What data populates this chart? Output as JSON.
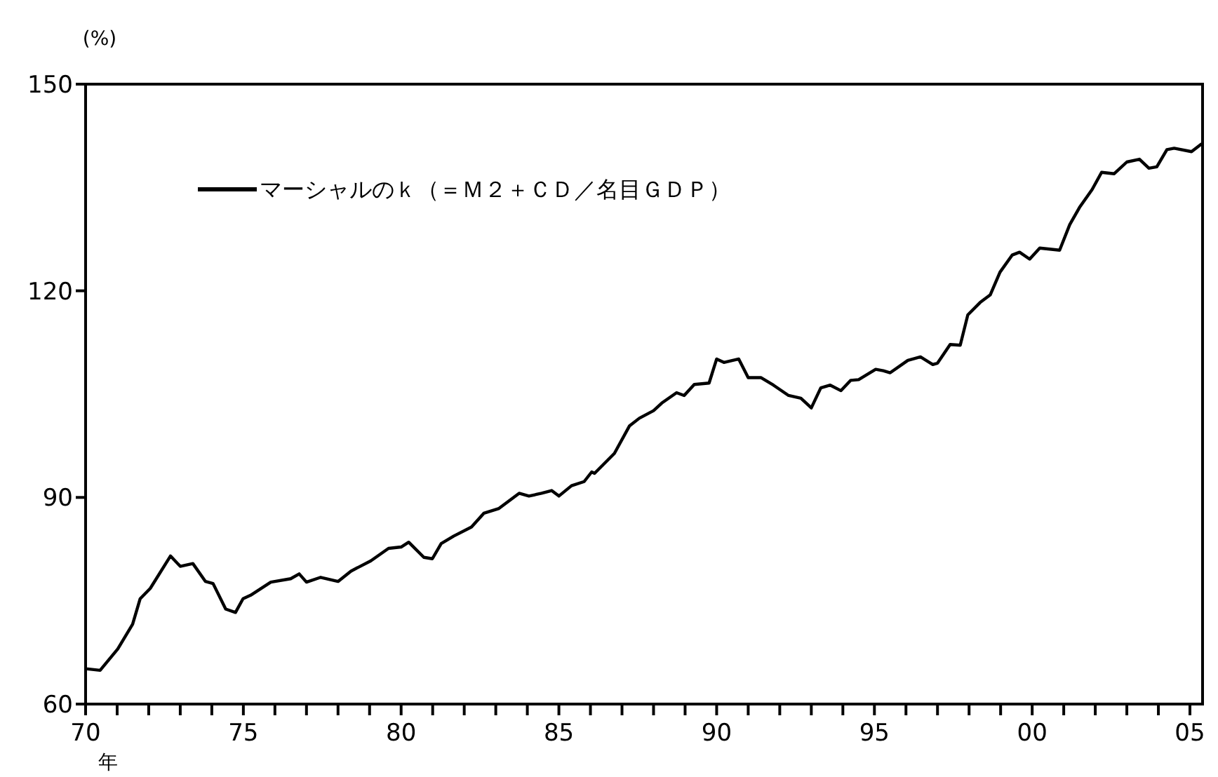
{
  "chart_data": {
    "type": "line",
    "ylabel": "(%)",
    "xlabel": "年",
    "xlim": [
      1970,
      2005.4
    ],
    "ylim": [
      60,
      150
    ],
    "yticks": [
      60,
      90,
      120,
      150
    ],
    "xticks": [
      {
        "value": 1970,
        "label": "70"
      },
      {
        "value": 1971,
        "label": null
      },
      {
        "value": 1972,
        "label": null
      },
      {
        "value": 1973,
        "label": null
      },
      {
        "value": 1974,
        "label": null
      },
      {
        "value": 1975,
        "label": "75"
      },
      {
        "value": 1976,
        "label": null
      },
      {
        "value": 1977,
        "label": null
      },
      {
        "value": 1978,
        "label": null
      },
      {
        "value": 1979,
        "label": null
      },
      {
        "value": 1980,
        "label": "80"
      },
      {
        "value": 1981,
        "label": null
      },
      {
        "value": 1982,
        "label": null
      },
      {
        "value": 1983,
        "label": null
      },
      {
        "value": 1984,
        "label": null
      },
      {
        "value": 1985,
        "label": "85"
      },
      {
        "value": 1986,
        "label": null
      },
      {
        "value": 1987,
        "label": null
      },
      {
        "value": 1988,
        "label": null
      },
      {
        "value": 1989,
        "label": null
      },
      {
        "value": 1990,
        "label": "90"
      },
      {
        "value": 1991,
        "label": null
      },
      {
        "value": 1992,
        "label": null
      },
      {
        "value": 1993,
        "label": null
      },
      {
        "value": 1994,
        "label": null
      },
      {
        "value": 1995,
        "label": "95"
      },
      {
        "value": 1996,
        "label": null
      },
      {
        "value": 1997,
        "label": null
      },
      {
        "value": 1998,
        "label": null
      },
      {
        "value": 1999,
        "label": null
      },
      {
        "value": 2000,
        "label": "00"
      },
      {
        "value": 2001,
        "label": null
      },
      {
        "value": 2002,
        "label": null
      },
      {
        "value": 2003,
        "label": null
      },
      {
        "value": 2004,
        "label": null
      },
      {
        "value": 2005,
        "label": "05"
      }
    ],
    "grid": false,
    "legend": "top left",
    "marker": "none",
    "line_style": "solid",
    "series": [
      {
        "name": "マーシャルのｋ（＝Ｍ２＋ＣＤ／名目ＧＤＰ）",
        "color": "#000000",
        "x": [
          1970.06,
          1970.46,
          1971.02,
          1971.49,
          1971.73,
          1972.05,
          1972.69,
          1973.0,
          1973.4,
          1973.8,
          1974.04,
          1974.44,
          1974.75,
          1974.99,
          1975.23,
          1975.87,
          1976.5,
          1976.77,
          1977.0,
          1977.45,
          1978.0,
          1978.41,
          1979.04,
          1979.6,
          1980.0,
          1980.24,
          1980.72,
          1980.99,
          1981.27,
          1981.67,
          1982.23,
          1982.62,
          1983.1,
          1983.74,
          1984.05,
          1984.45,
          1984.77,
          1985.0,
          1985.4,
          1985.8,
          1986.04,
          1986.13,
          1986.76,
          1987.24,
          1987.55,
          1988.0,
          1988.26,
          1988.73,
          1988.97,
          1989.29,
          1989.76,
          1990.0,
          1990.23,
          1990.7,
          1991.0,
          1991.4,
          1991.8,
          1992.28,
          1992.67,
          1993.0,
          1993.3,
          1993.6,
          1993.94,
          1994.25,
          1994.5,
          1995.04,
          1995.28,
          1995.5,
          1996.06,
          1996.46,
          1996.85,
          1997.0,
          1997.4,
          1997.72,
          1997.96,
          1998.35,
          1998.67,
          1998.98,
          1999.37,
          1999.6,
          1999.92,
          2000.24,
          2000.87,
          2001.19,
          2001.5,
          2001.9,
          2002.2,
          2002.6,
          2003.0,
          2003.4,
          2003.7,
          2003.95,
          2004.27,
          2004.5,
          2005.05,
          2005.36
        ],
        "values": [
          65.1,
          64.9,
          68.0,
          71.6,
          75.3,
          76.8,
          81.5,
          80.0,
          80.4,
          77.8,
          77.5,
          73.8,
          73.3,
          75.3,
          75.8,
          77.7,
          78.2,
          78.9,
          77.7,
          78.4,
          77.8,
          79.3,
          80.8,
          82.6,
          82.8,
          83.5,
          81.3,
          81.1,
          83.3,
          84.4,
          85.7,
          87.7,
          88.4,
          90.6,
          90.2,
          90.6,
          91.0,
          90.2,
          91.7,
          92.3,
          93.7,
          93.5,
          96.4,
          100.4,
          101.5,
          102.6,
          103.7,
          105.2,
          104.8,
          106.4,
          106.6,
          110.1,
          109.6,
          110.1,
          107.4,
          107.4,
          106.3,
          104.8,
          104.4,
          103.0,
          105.9,
          106.3,
          105.5,
          107.0,
          107.1,
          108.6,
          108.4,
          108.1,
          109.9,
          110.4,
          109.3,
          109.5,
          112.2,
          112.1,
          116.5,
          118.3,
          119.4,
          122.7,
          125.2,
          125.6,
          124.6,
          126.2,
          125.9,
          129.6,
          132.1,
          134.7,
          137.2,
          137.0,
          138.7,
          139.1,
          137.8,
          138.0,
          140.5,
          140.7,
          140.2,
          141.3
        ]
      }
    ]
  }
}
